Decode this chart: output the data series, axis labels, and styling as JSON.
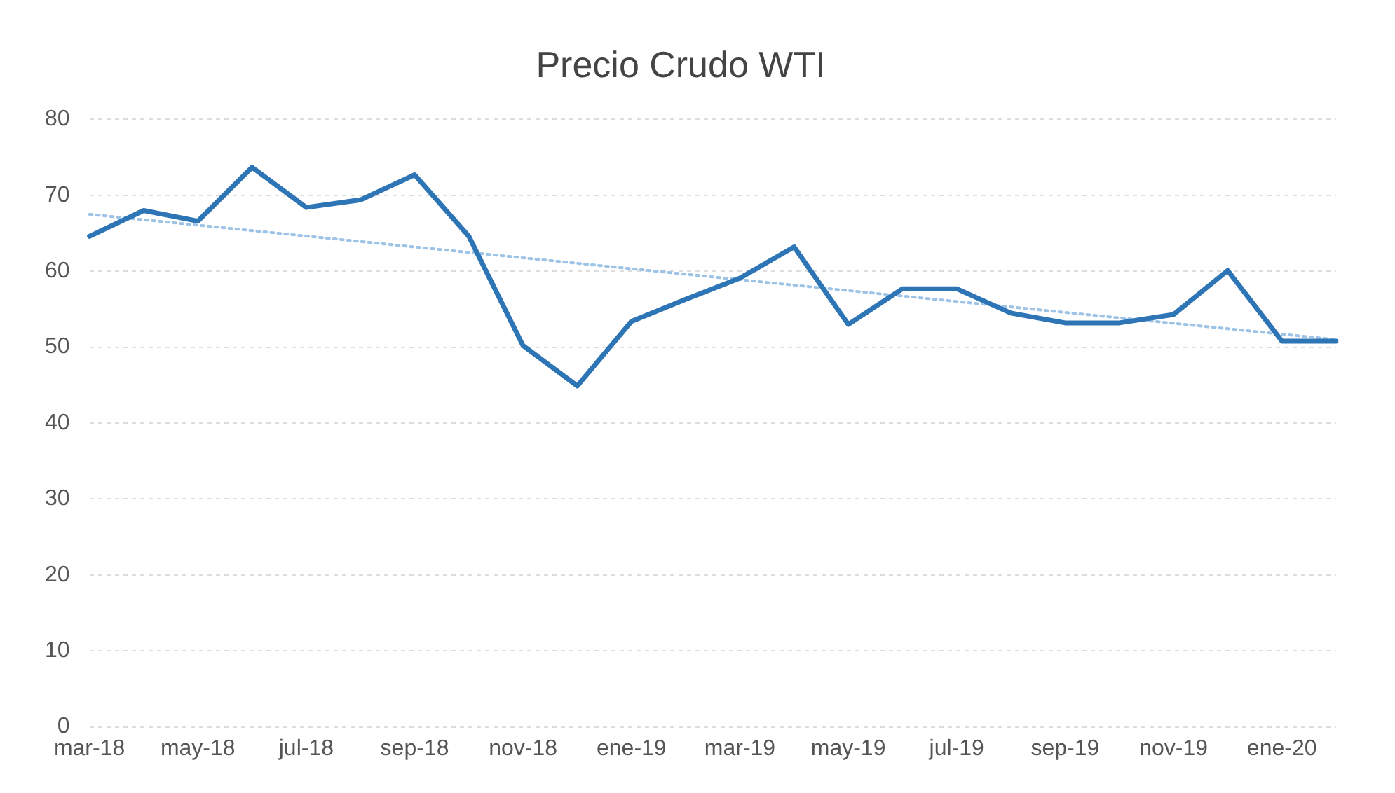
{
  "chart_data": {
    "type": "line",
    "title": "Precio Crudo WTI",
    "categories": [
      "mar-18",
      null,
      "may-18",
      null,
      "jul-18",
      null,
      "sep-18",
      null,
      "nov-18",
      null,
      "ene-19",
      null,
      "mar-19",
      null,
      "may-19",
      null,
      "jul-19",
      null,
      "sep-19",
      null,
      "nov-19",
      null,
      "ene-20",
      null
    ],
    "series": [
      {
        "color": "#2e75b6",
        "values": [
          64.6,
          68,
          66.6,
          73.7,
          68.4,
          69.4,
          72.7,
          64.6,
          50.2,
          44.9,
          53.4,
          56.3,
          59.1,
          63.2,
          53,
          57.7,
          57.7,
          54.5,
          53.2,
          53.2,
          54.3,
          60.1,
          50.8,
          50.8
        ]
      },
      {
        "type": "line",
        "color": "#9dc3e6",
        "line_style": "dotted",
        "values": [
          67.5,
          null,
          null,
          null,
          null,
          null,
          null,
          null,
          null,
          null,
          null,
          null,
          null,
          null,
          null,
          null,
          null,
          null,
          null,
          null,
          null,
          null,
          null,
          51
        ]
      }
    ],
    "ylim": [
      0,
      80
    ],
    "yticks": [
      0,
      10,
      20,
      30,
      40,
      50,
      60,
      70,
      80
    ],
    "grid": "y",
    "legend": false,
    "marker": "none"
  }
}
